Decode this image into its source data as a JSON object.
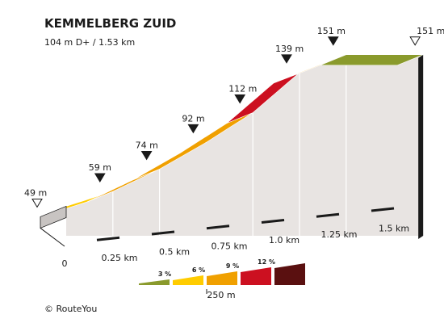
{
  "header": {
    "title": "KEMMELBERG ZUID",
    "subtitle": "104 m D+ / 1.53 km"
  },
  "chart_data": {
    "type": "area",
    "distance_unit": "km",
    "elevation_unit": "m",
    "x_range": [
      0,
      1.53
    ],
    "profile": [
      {
        "km": 0.0,
        "elev": 49
      },
      {
        "km": 0.2,
        "elev": 59
      },
      {
        "km": 0.4,
        "elev": 74
      },
      {
        "km": 0.6,
        "elev": 92
      },
      {
        "km": 0.8,
        "elev": 112
      },
      {
        "km": 1.0,
        "elev": 139
      },
      {
        "km": 1.2,
        "elev": 151
      },
      {
        "km": 1.53,
        "elev": 151
      }
    ],
    "segments": [
      {
        "from_km": 0.0,
        "to_km": 0.2,
        "gradient": "3-6%"
      },
      {
        "from_km": 0.2,
        "to_km": 0.4,
        "gradient": "6-9%"
      },
      {
        "from_km": 0.4,
        "to_km": 0.8,
        "gradient": "9-12%"
      },
      {
        "from_km": 0.8,
        "to_km": 1.0,
        "gradient": ">12%"
      },
      {
        "from_km": 1.0,
        "to_km": 1.2,
        "gradient": "6-9%"
      },
      {
        "from_km": 1.2,
        "to_km": 1.53,
        "gradient": "0-3%"
      }
    ],
    "elevation_markers": [
      {
        "km": 0.0,
        "label": "49 m",
        "marker": "open"
      },
      {
        "km": 0.2,
        "label": "59 m",
        "marker": "filled"
      },
      {
        "km": 0.4,
        "label": "74 m",
        "marker": "filled"
      },
      {
        "km": 0.6,
        "label": "92 m",
        "marker": "filled"
      },
      {
        "km": 0.8,
        "label": "112 m",
        "marker": "filled"
      },
      {
        "km": 1.0,
        "label": "139 m",
        "marker": "filled"
      },
      {
        "km": 1.2,
        "label": "151 m",
        "marker": "filled"
      },
      {
        "km": 1.53,
        "label": "151 m",
        "marker": "open"
      }
    ],
    "x_ticks": [
      {
        "km": 0.0,
        "label": "0"
      },
      {
        "km": 0.25,
        "label": "0.25 km"
      },
      {
        "km": 0.5,
        "label": "0.5 km"
      },
      {
        "km": 0.75,
        "label": "0.75 km"
      },
      {
        "km": 1.0,
        "label": "1.0 km"
      },
      {
        "km": 1.25,
        "label": "1.25 km"
      },
      {
        "km": 1.5,
        "label": "1.5 km"
      }
    ],
    "legend": {
      "items": [
        {
          "label": "3 %",
          "color": "#8a9a2c"
        },
        {
          "label": "6 %",
          "color": "#ffcc00"
        },
        {
          "label": "9 %",
          "color": "#f0a000"
        },
        {
          "label": "12 %",
          "color": "#cc1020"
        },
        {
          "label": "",
          "color": "#5a1010"
        }
      ],
      "scale_label": "250 m"
    },
    "colors": {
      "3-6%": "#ffcc00",
      "6-9%": "#f0a000",
      "9-12%": "#f0a000",
      ">12%": "#cc1020",
      "0-3%": "#8a9a2c",
      "wall": "#e8e4e2",
      "grid": "#ffffff",
      "road_side": "#c8c4c2"
    }
  },
  "footer": {
    "credit": "© RouteYou"
  }
}
